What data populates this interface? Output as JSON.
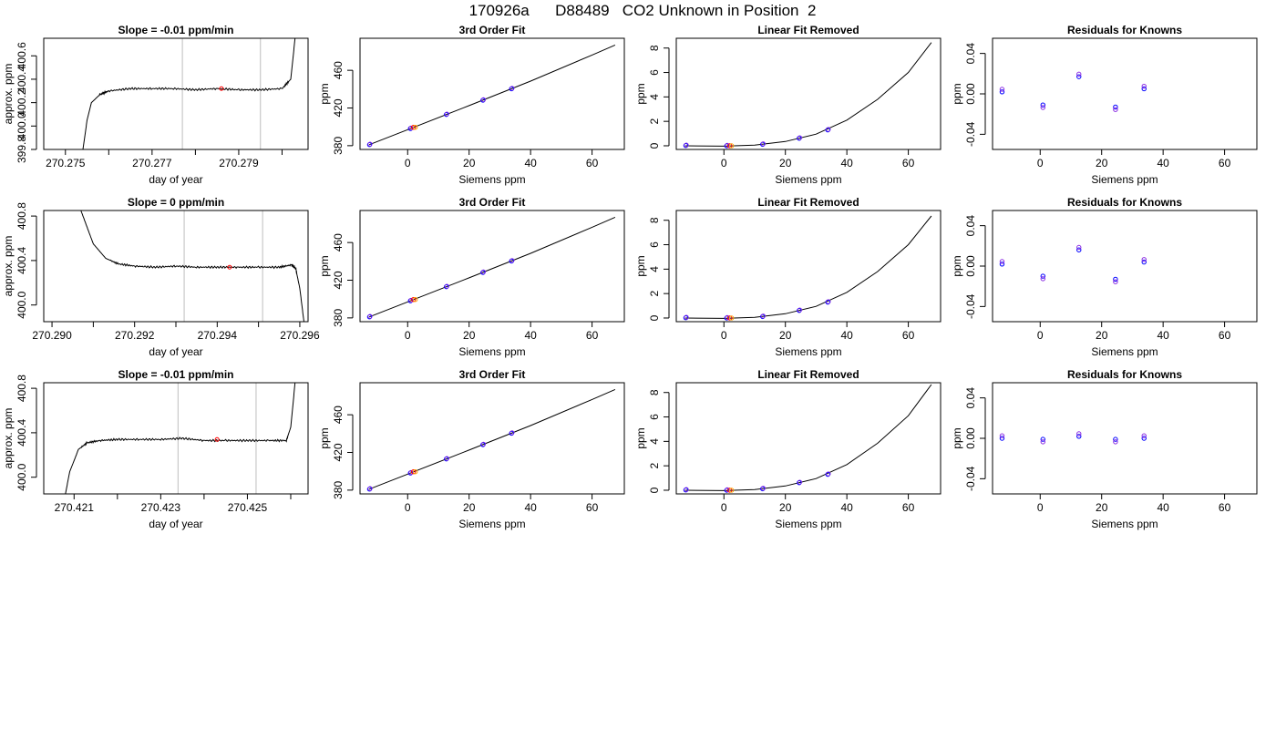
{
  "figure_title": "170926a      D88489   CO2 Unknown in Position  2",
  "colors": {
    "line": "#000000",
    "known_a": "#0000ff",
    "known_b": "#8a2be2",
    "unknown": "#ff0000",
    "unknown_b": "#ffa500",
    "ref_line": "#c8c8c8"
  },
  "chart_data": [
    {
      "type": "line",
      "row": 0,
      "col": 0,
      "title": "Slope =  -0.01  ppm/min",
      "xlabel": "day of year",
      "ylabel": "approx. ppm",
      "xlim": [
        270.2745,
        270.2806
      ],
      "ylim": [
        399.8,
        400.75
      ],
      "xticks": [
        "270.275",
        "270.276",
        "270.277",
        "270.278",
        "270.279",
        "270.280"
      ],
      "xtick_labels": [
        "270.275",
        "",
        "270.277",
        "",
        "270.279",
        ""
      ],
      "yticks": [
        "399.8",
        "400.0",
        "400.2",
        "400.4",
        "400.6"
      ],
      "vlines": [
        270.2777,
        270.2795
      ],
      "baseline": 400.32,
      "trace": [
        [
          270.2754,
          399.79
        ],
        [
          270.2755,
          400.05
        ],
        [
          270.2756,
          400.2
        ],
        [
          270.2758,
          400.27
        ],
        [
          270.276,
          400.3
        ],
        [
          270.2765,
          400.32
        ],
        [
          270.277,
          400.32
        ],
        [
          270.2775,
          400.32
        ],
        [
          270.278,
          400.31
        ],
        [
          270.2785,
          400.32
        ],
        [
          270.279,
          400.31
        ],
        [
          270.2795,
          400.31
        ],
        [
          270.28,
          400.32
        ],
        [
          270.2802,
          400.4
        ],
        [
          270.2803,
          400.75
        ]
      ],
      "marker": [
        270.2786,
        400.32
      ]
    },
    {
      "type": "scatter",
      "row": 0,
      "col": 1,
      "title": "3rd Order Fit",
      "xlabel": "Siemens ppm",
      "ylabel": "ppm",
      "xlim": [
        -15.5,
        70.5
      ],
      "ylim": [
        376,
        494
      ],
      "xticks": [
        "0",
        "20",
        "40",
        "60"
      ],
      "yticks": [
        "380",
        "420",
        "460"
      ],
      "fit_curve": {
        "type": "line",
        "points": [
          [
            -12.5,
            381.0
          ],
          [
            0,
            397.0
          ],
          [
            20,
            422.5
          ],
          [
            40,
            448.5
          ],
          [
            60,
            476.2
          ],
          [
            67.5,
            486.8
          ]
        ]
      },
      "knowns": {
        "x": [
          -12.4,
          0.9,
          12.6,
          24.5,
          33.8
        ],
        "y": [
          381.1,
          398.2,
          413.1,
          428.3,
          440.4
        ]
      },
      "unknown": {
        "x": 1.9,
        "y": 399.5
      }
    },
    {
      "type": "scatter",
      "row": 0,
      "col": 2,
      "title": "Linear Fit Removed",
      "xlabel": "Siemens ppm",
      "ylabel": "ppm",
      "xlim": [
        -15.5,
        70.5
      ],
      "ylim": [
        -0.3,
        8.8
      ],
      "xticks": [
        "0",
        "20",
        "40",
        "60"
      ],
      "yticks": [
        "0",
        "2",
        "4",
        "6",
        "8"
      ],
      "fit_curve": {
        "type": "line",
        "points": [
          [
            -12.5,
            0.0
          ],
          [
            0,
            -0.03
          ],
          [
            10,
            0.05
          ],
          [
            20,
            0.35
          ],
          [
            30,
            0.95
          ],
          [
            40,
            2.1
          ],
          [
            50,
            3.8
          ],
          [
            60,
            6.0
          ],
          [
            67.5,
            8.45
          ]
        ]
      },
      "knowns": {
        "x": [
          -12.4,
          0.9,
          12.6,
          24.5,
          33.8
        ],
        "y": [
          0.02,
          0.0,
          0.12,
          0.62,
          1.3
        ]
      },
      "unknown": {
        "x": 1.9,
        "y": 0.0
      }
    },
    {
      "type": "scatter",
      "row": 0,
      "col": 3,
      "title": "Residuals for Knowns",
      "xlabel": "Siemens ppm",
      "ylabel": "ppm",
      "xlim": [
        -15.5,
        70.5
      ],
      "ylim": [
        -0.055,
        0.055
      ],
      "xticks": [
        "0",
        "20",
        "40",
        "60"
      ],
      "yticks": [
        "-0.04",
        "0.00",
        "0.04"
      ],
      "residuals": {
        "x": [
          -12.4,
          0.9,
          12.6,
          24.5,
          33.8
        ],
        "y": [
          0.002,
          -0.011,
          0.017,
          -0.013,
          0.005
        ]
      }
    },
    {
      "type": "line",
      "row": 1,
      "col": 0,
      "title": "Slope =  0  ppm/min",
      "xlabel": "day of year",
      "ylabel": "approx. ppm",
      "xlim": [
        270.2898,
        270.2962
      ],
      "ylim": [
        399.85,
        400.85
      ],
      "xticks": [
        "270.290",
        "270.291",
        "270.292",
        "270.293",
        "270.294",
        "270.295",
        "270.296"
      ],
      "xtick_labels": [
        "270.290",
        "",
        "270.292",
        "",
        "270.294",
        "",
        "270.296"
      ],
      "yticks": [
        "400.0",
        "400.4",
        "400.8"
      ],
      "vlines": [
        270.2932,
        270.2951
      ],
      "baseline": 400.34,
      "trace": [
        [
          270.2907,
          400.85
        ],
        [
          270.291,
          400.55
        ],
        [
          270.2913,
          400.42
        ],
        [
          270.2916,
          400.37
        ],
        [
          270.292,
          400.35
        ],
        [
          270.2925,
          400.34
        ],
        [
          270.293,
          400.35
        ],
        [
          270.2935,
          400.34
        ],
        [
          270.294,
          400.34
        ],
        [
          270.2945,
          400.34
        ],
        [
          270.295,
          400.34
        ],
        [
          270.2955,
          400.34
        ],
        [
          270.2958,
          400.36
        ],
        [
          270.2959,
          400.33
        ],
        [
          270.296,
          400.15
        ],
        [
          270.2961,
          399.85
        ]
      ],
      "marker": [
        270.2943,
        400.34
      ]
    },
    {
      "type": "scatter",
      "row": 1,
      "col": 1,
      "title": "3rd Order Fit",
      "xlabel": "Siemens ppm",
      "ylabel": "ppm",
      "xlim": [
        -15.5,
        70.5
      ],
      "ylim": [
        376,
        494
      ],
      "xticks": [
        "0",
        "20",
        "40",
        "60"
      ],
      "yticks": [
        "380",
        "420",
        "460"
      ],
      "fit_curve": {
        "type": "line",
        "points": [
          [
            -12.5,
            381.0
          ],
          [
            0,
            397.0
          ],
          [
            20,
            422.5
          ],
          [
            40,
            448.5
          ],
          [
            60,
            476.2
          ],
          [
            67.5,
            486.8
          ]
        ]
      },
      "knowns": {
        "x": [
          -12.4,
          0.9,
          12.6,
          24.5,
          33.8
        ],
        "y": [
          381.1,
          398.2,
          413.1,
          428.3,
          440.4
        ]
      },
      "unknown": {
        "x": 1.9,
        "y": 399.5
      }
    },
    {
      "type": "scatter",
      "row": 1,
      "col": 2,
      "title": "Linear Fit Removed",
      "xlabel": "Siemens ppm",
      "ylabel": "ppm",
      "xlim": [
        -15.5,
        70.5
      ],
      "ylim": [
        -0.3,
        8.8
      ],
      "xticks": [
        "0",
        "20",
        "40",
        "60"
      ],
      "yticks": [
        "0",
        "2",
        "4",
        "6",
        "8"
      ],
      "fit_curve": {
        "type": "line",
        "points": [
          [
            -12.5,
            0.0
          ],
          [
            0,
            -0.03
          ],
          [
            10,
            0.05
          ],
          [
            20,
            0.35
          ],
          [
            30,
            0.95
          ],
          [
            40,
            2.1
          ],
          [
            50,
            3.8
          ],
          [
            60,
            6.0
          ],
          [
            67.5,
            8.35
          ]
        ]
      },
      "knowns": {
        "x": [
          -12.4,
          0.9,
          12.6,
          24.5,
          33.8
        ],
        "y": [
          0.02,
          0.0,
          0.12,
          0.62,
          1.3
        ]
      },
      "unknown": {
        "x": 1.9,
        "y": 0.0
      }
    },
    {
      "type": "scatter",
      "row": 1,
      "col": 3,
      "title": "Residuals for Knowns",
      "xlabel": "Siemens ppm",
      "ylabel": "ppm",
      "xlim": [
        -15.5,
        70.5
      ],
      "ylim": [
        -0.055,
        0.055
      ],
      "xticks": [
        "0",
        "20",
        "40",
        "60"
      ],
      "yticks": [
        "-0.04",
        "0.00",
        "0.04"
      ],
      "residuals": {
        "x": [
          -12.4,
          0.9,
          12.6,
          24.5,
          33.8
        ],
        "y": [
          0.002,
          -0.01,
          0.016,
          -0.013,
          0.004
        ]
      }
    },
    {
      "type": "line",
      "row": 2,
      "col": 0,
      "title": "Slope =  -0.01  ppm/min",
      "xlabel": "day of year",
      "ylabel": "approx. ppm",
      "xlim": [
        270.4203,
        270.4264
      ],
      "ylim": [
        399.85,
        400.85
      ],
      "xticks": [
        "270.421",
        "270.422",
        "270.423",
        "270.424",
        "270.425",
        "270.426"
      ],
      "xtick_labels": [
        "270.421",
        "",
        "270.423",
        "",
        "270.425",
        ""
      ],
      "yticks": [
        "400.0",
        "400.4",
        "400.8"
      ],
      "vlines": [
        270.4234,
        270.4252
      ],
      "baseline": 400.33,
      "trace": [
        [
          270.4208,
          399.85
        ],
        [
          270.4209,
          400.05
        ],
        [
          270.4211,
          400.25
        ],
        [
          270.4213,
          400.31
        ],
        [
          270.4216,
          400.33
        ],
        [
          270.422,
          400.34
        ],
        [
          270.4225,
          400.34
        ],
        [
          270.423,
          400.34
        ],
        [
          270.4235,
          400.35
        ],
        [
          270.424,
          400.33
        ],
        [
          270.4245,
          400.33
        ],
        [
          270.425,
          400.33
        ],
        [
          270.4255,
          400.33
        ],
        [
          270.4259,
          400.33
        ],
        [
          270.426,
          400.45
        ],
        [
          270.4261,
          400.85
        ]
      ],
      "marker": [
        270.4243,
        400.34
      ]
    },
    {
      "type": "scatter",
      "row": 2,
      "col": 1,
      "title": "3rd Order Fit",
      "xlabel": "Siemens ppm",
      "ylabel": "ppm",
      "xlim": [
        -15.5,
        70.5
      ],
      "ylim": [
        376,
        494
      ],
      "xticks": [
        "0",
        "20",
        "40",
        "60"
      ],
      "yticks": [
        "380",
        "420",
        "460"
      ],
      "fit_curve": {
        "type": "line",
        "points": [
          [
            -12.5,
            381.0
          ],
          [
            0,
            397.0
          ],
          [
            20,
            422.5
          ],
          [
            40,
            448.5
          ],
          [
            60,
            476.2
          ],
          [
            67.5,
            486.8
          ]
        ]
      },
      "knowns": {
        "x": [
          -12.4,
          0.9,
          12.6,
          24.5,
          33.8
        ],
        "y": [
          381.1,
          398.2,
          413.1,
          428.3,
          440.4
        ]
      },
      "unknown": {
        "x": 1.9,
        "y": 399.5
      }
    },
    {
      "type": "scatter",
      "row": 2,
      "col": 2,
      "title": "Linear Fit Removed",
      "xlabel": "Siemens ppm",
      "ylabel": "ppm",
      "xlim": [
        -15.5,
        70.5
      ],
      "ylim": [
        -0.3,
        8.8
      ],
      "xticks": [
        "0",
        "20",
        "40",
        "60"
      ],
      "yticks": [
        "0",
        "2",
        "4",
        "6",
        "8"
      ],
      "fit_curve": {
        "type": "line",
        "points": [
          [
            -12.5,
            0.0
          ],
          [
            0,
            -0.03
          ],
          [
            10,
            0.05
          ],
          [
            20,
            0.35
          ],
          [
            30,
            0.95
          ],
          [
            40,
            2.1
          ],
          [
            50,
            3.85
          ],
          [
            60,
            6.1
          ],
          [
            67.5,
            8.65
          ]
        ]
      },
      "knowns": {
        "x": [
          -12.4,
          0.9,
          12.6,
          24.5,
          33.8
        ],
        "y": [
          0.02,
          0.0,
          0.12,
          0.62,
          1.3
        ]
      },
      "unknown": {
        "x": 1.9,
        "y": 0.0
      }
    },
    {
      "type": "scatter",
      "row": 2,
      "col": 3,
      "title": "Residuals for Knowns",
      "xlabel": "Siemens ppm",
      "ylabel": "ppm",
      "xlim": [
        -15.5,
        70.5
      ],
      "ylim": [
        -0.055,
        0.055
      ],
      "xticks": [
        "0",
        "20",
        "40",
        "60"
      ],
      "yticks": [
        "-0.04",
        "0.00",
        "0.04"
      ],
      "residuals": {
        "x": [
          -12.4,
          0.9,
          12.6,
          24.5,
          33.8
        ],
        "y": [
          0.0,
          -0.001,
          0.002,
          -0.001,
          0.0
        ]
      }
    }
  ]
}
